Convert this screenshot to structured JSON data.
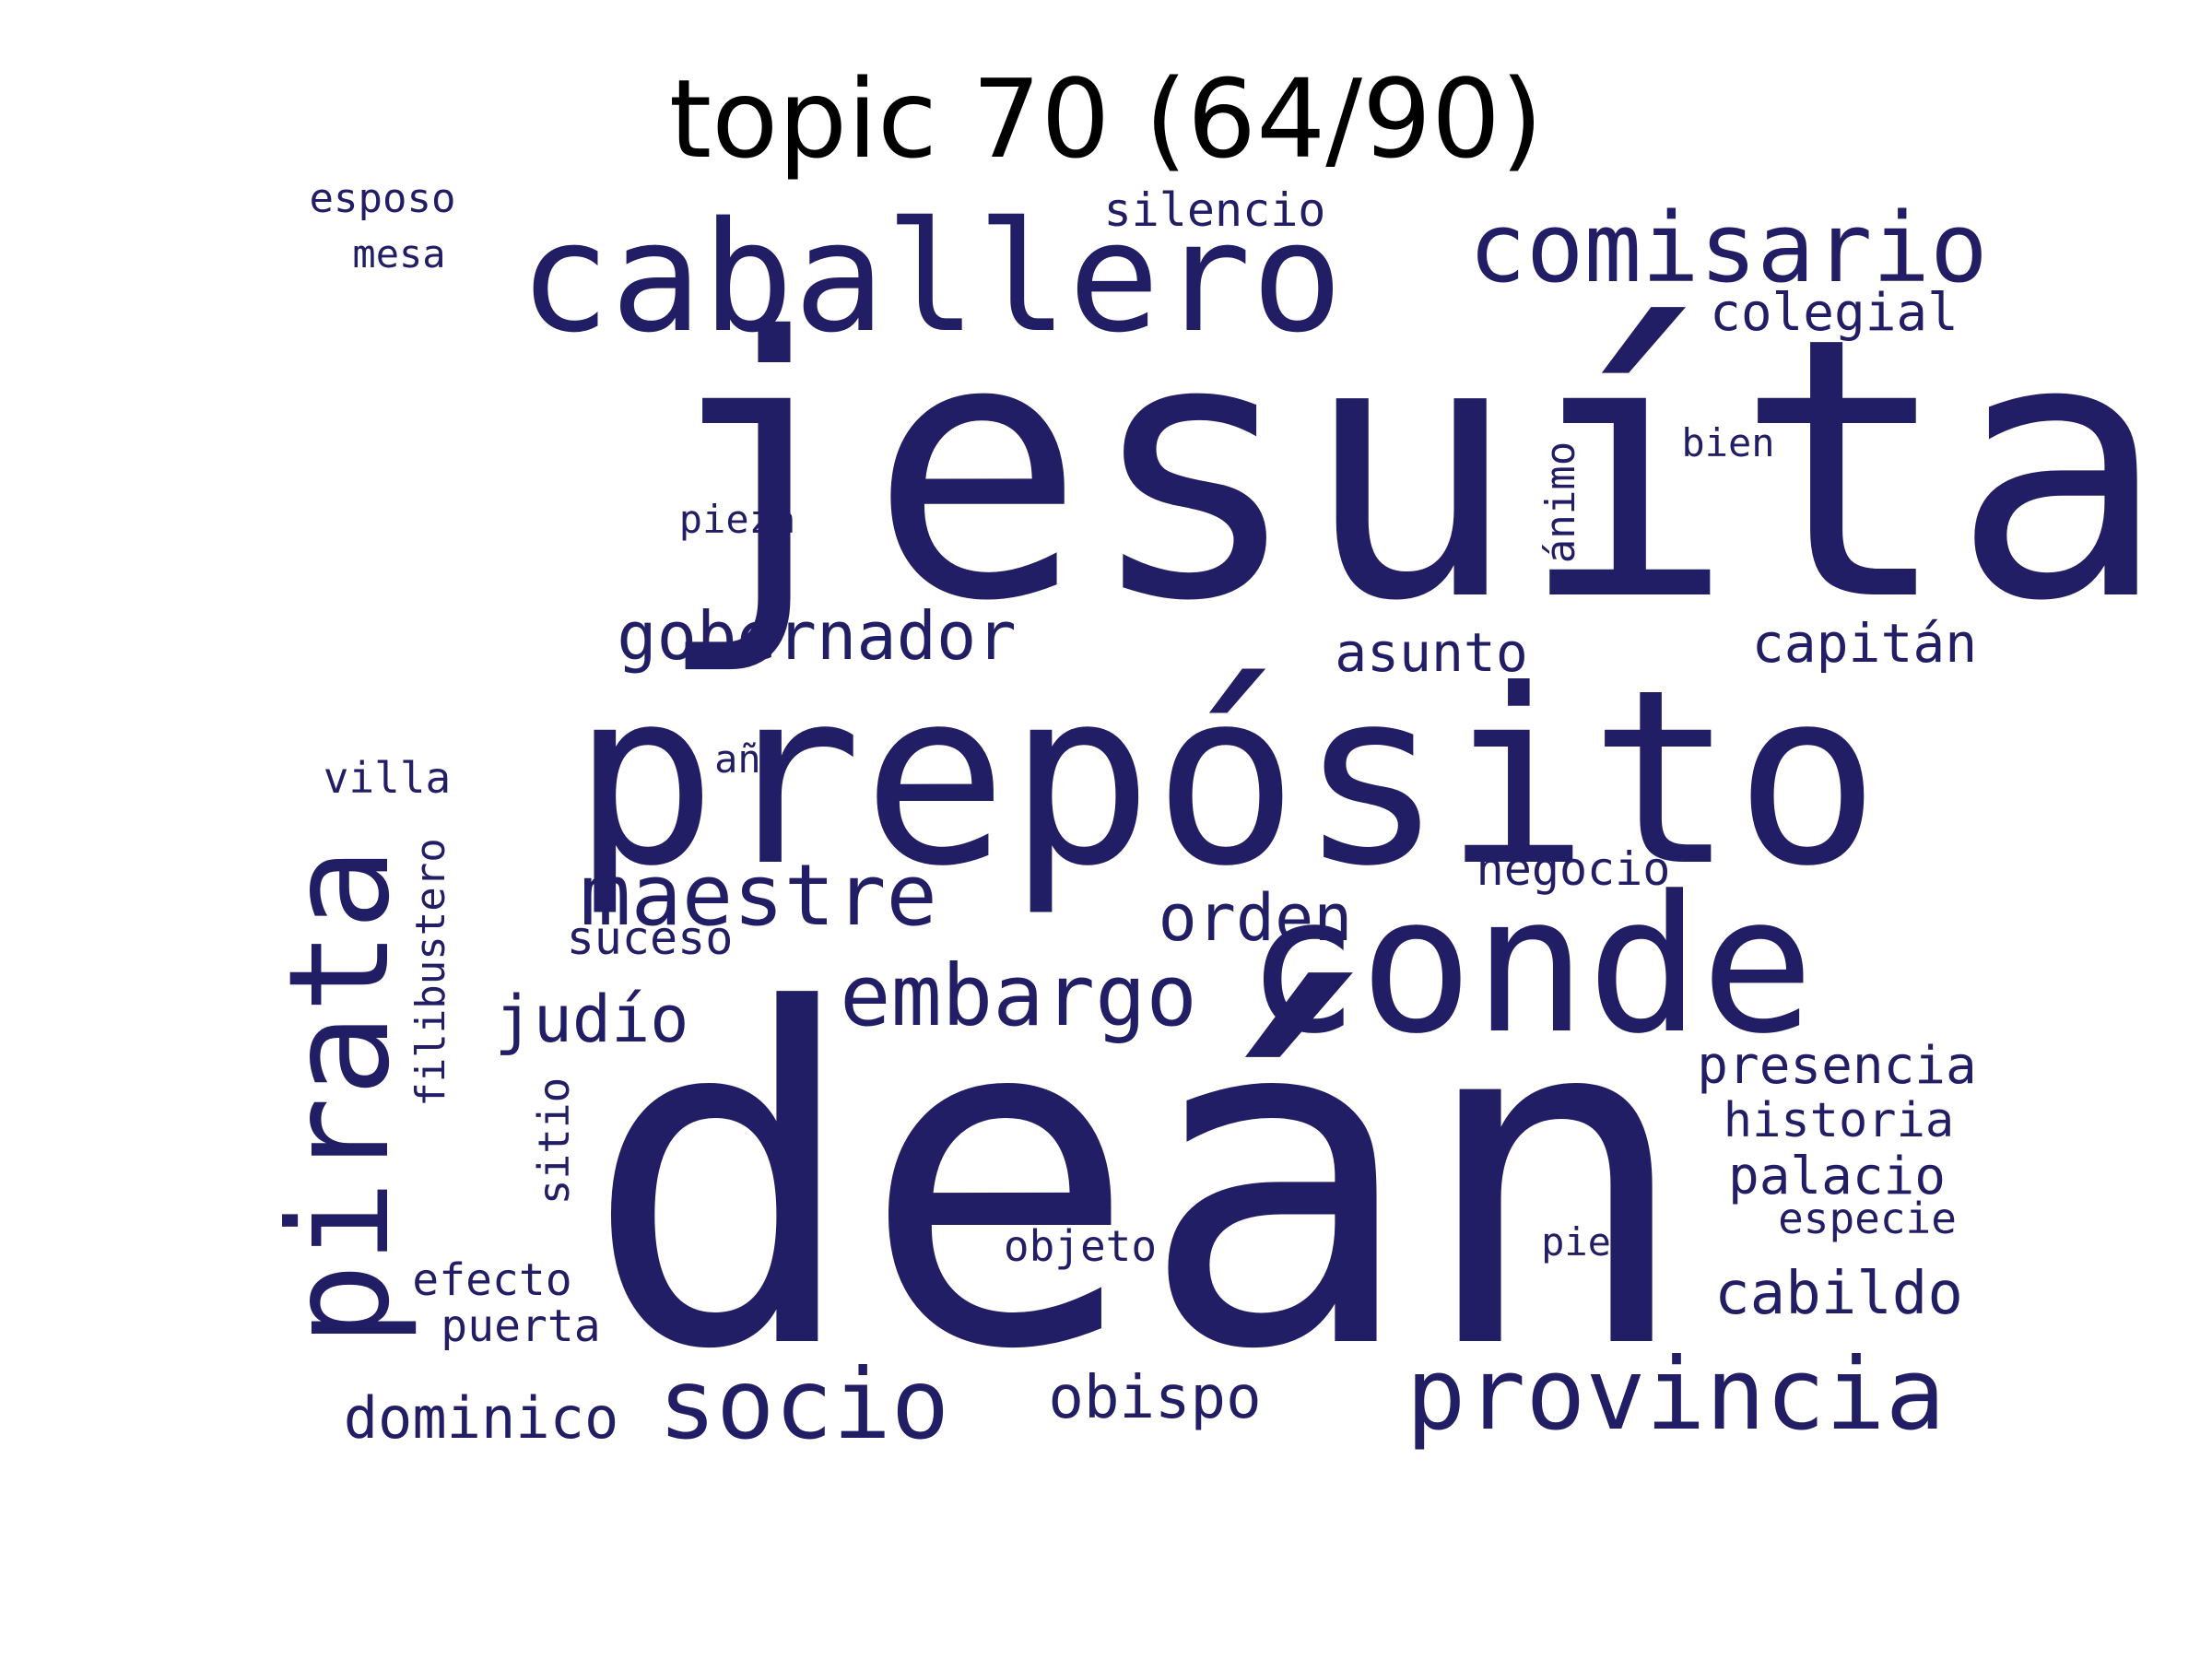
{
  "title": "topic 70 (64/90)",
  "colors": {
    "word": "#221e66",
    "title": "#000000",
    "background": "#ffffff"
  },
  "words": [
    {
      "id": "jesuita",
      "text": "jesuíta",
      "vertical": false
    },
    {
      "id": "dean",
      "text": "deán",
      "vertical": false
    },
    {
      "id": "preposito",
      "text": "prepósito",
      "vertical": false
    },
    {
      "id": "caballero",
      "text": "caballero",
      "vertical": false
    },
    {
      "id": "conde",
      "text": "conde",
      "vertical": false
    },
    {
      "id": "pirata",
      "text": "pirata",
      "vertical": true
    },
    {
      "id": "comisario",
      "text": "comisario",
      "vertical": false
    },
    {
      "id": "provincia",
      "text": "provincia",
      "vertical": false
    },
    {
      "id": "socio",
      "text": "socio",
      "vertical": false
    },
    {
      "id": "embargo",
      "text": "embargo",
      "vertical": false
    },
    {
      "id": "maestre",
      "text": "maestre",
      "vertical": false
    },
    {
      "id": "gobernador",
      "text": "gobernador",
      "vertical": false
    },
    {
      "id": "orden",
      "text": "orden",
      "vertical": false
    },
    {
      "id": "judio",
      "text": "judío",
      "vertical": false
    },
    {
      "id": "cabildo",
      "text": "cabildo",
      "vertical": false
    },
    {
      "id": "obispo",
      "text": "obispo",
      "vertical": false
    },
    {
      "id": "dominico",
      "text": "dominico",
      "vertical": false
    },
    {
      "id": "asunto",
      "text": "asunto",
      "vertical": false
    },
    {
      "id": "capitan",
      "text": "capitán",
      "vertical": false
    },
    {
      "id": "colegial",
      "text": "colegial",
      "vertical": false
    },
    {
      "id": "presencia",
      "text": "presencia",
      "vertical": false
    },
    {
      "id": "palacio",
      "text": "palacio",
      "vertical": false
    },
    {
      "id": "historia",
      "text": "historia",
      "vertical": false
    },
    {
      "id": "negocio",
      "text": "negocio",
      "vertical": false
    },
    {
      "id": "suceso",
      "text": "suceso",
      "vertical": false
    },
    {
      "id": "silencio",
      "text": "silencio",
      "vertical": false
    },
    {
      "id": "especie",
      "text": "especie",
      "vertical": false
    },
    {
      "id": "objeto",
      "text": "objeto",
      "vertical": false
    },
    {
      "id": "efecto",
      "text": "efecto",
      "vertical": false
    },
    {
      "id": "puerta",
      "text": "puerta",
      "vertical": false
    },
    {
      "id": "villa",
      "text": "villa",
      "vertical": false
    },
    {
      "id": "filibustero",
      "text": "filibustero",
      "vertical": true
    },
    {
      "id": "sitio",
      "text": "sitio",
      "vertical": true
    },
    {
      "id": "animo",
      "text": "ánimo",
      "vertical": true
    },
    {
      "id": "esposo",
      "text": "esposo",
      "vertical": false
    },
    {
      "id": "mesa",
      "text": "mesa",
      "vertical": false
    },
    {
      "id": "pieza",
      "text": "pieza",
      "vertical": false
    },
    {
      "id": "bien",
      "text": "bien",
      "vertical": false
    },
    {
      "id": "ano",
      "text": "año",
      "vertical": false
    },
    {
      "id": "pie",
      "text": "pie",
      "vertical": false
    }
  ]
}
